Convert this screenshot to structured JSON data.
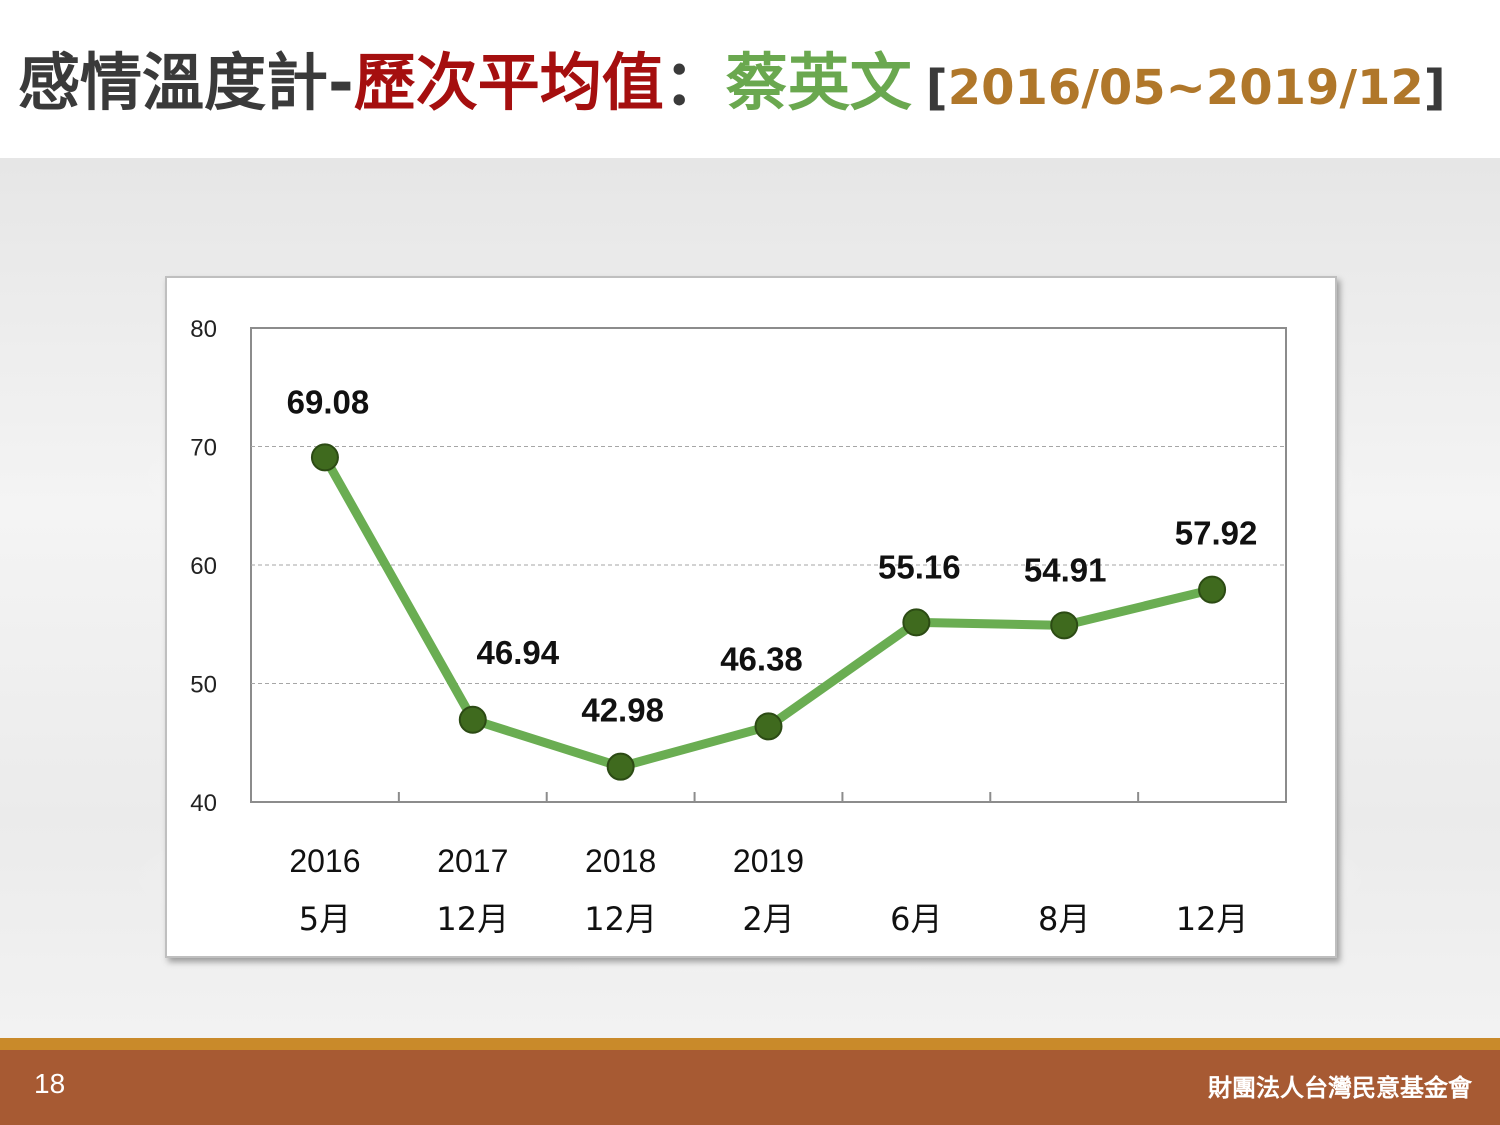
{
  "header": {
    "title_part1": "感情溫度計-",
    "title_part2": "歷次平均值",
    "title_part3": "：",
    "title_part4": "蔡英文",
    "range_open": "[",
    "range_value": "2016/05~2019/12",
    "range_close": "]"
  },
  "footer": {
    "page_number": "18",
    "organization": "財團法人台灣民意基金會"
  },
  "colors": {
    "line": "#6aad52",
    "marker": "#3f6a1e",
    "marker_stroke": "#2c4b14",
    "title_red": "#a50f0f",
    "title_green": "#6aa84f",
    "range_gold": "#b0772a"
  },
  "chart_data": {
    "type": "line",
    "title": "",
    "xlabel": "",
    "ylabel": "",
    "categories": [
      [
        "2016",
        "5月"
      ],
      [
        "2017",
        "12月"
      ],
      [
        "2018",
        "12月"
      ],
      [
        "2019",
        "2月"
      ],
      [
        "",
        "6月"
      ],
      [
        "",
        "8月"
      ],
      [
        "",
        "12月"
      ]
    ],
    "values": [
      69.08,
      46.94,
      42.98,
      46.38,
      55.16,
      54.91,
      57.92
    ],
    "data_labels": [
      "69.08",
      "46.94",
      "42.98",
      "46.38",
      "55.16",
      "54.91",
      "57.92"
    ],
    "ylim": [
      40,
      80
    ],
    "yticks": [
      40,
      50,
      60,
      70,
      80
    ],
    "grid": "horizontal dashed",
    "legend": "none"
  }
}
